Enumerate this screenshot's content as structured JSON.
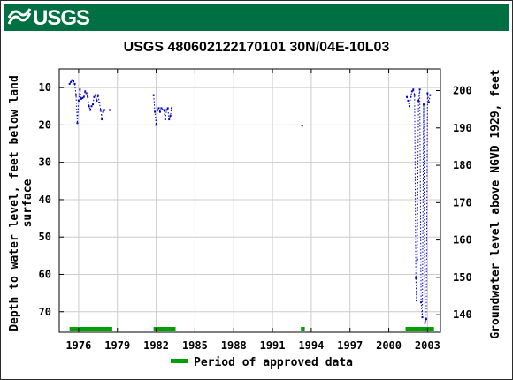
{
  "header": {
    "logo_text": "USGS"
  },
  "chart_data": {
    "type": "scatter",
    "title": "USGS 480602122170101 30N/04E-10L03",
    "ylabel_left_line1": "Depth to water level, feet below land",
    "ylabel_left_line2": "surface",
    "ylabel_right": "Groundwater level above NGVD 1929, feet",
    "x_range": [
      1974.5,
      2004.0
    ],
    "y_range_depth": [
      75.5,
      5.0
    ],
    "y_range_elevation": [
      135.3,
      205.8
    ],
    "x_ticks": [
      1976,
      1979,
      1982,
      1985,
      1988,
      1991,
      1994,
      1997,
      2000,
      2003
    ],
    "x_tick_labels": [
      "1976",
      "1979",
      "1982",
      "1985",
      "1988",
      "1991",
      "1994",
      "1997",
      "2000",
      "2003"
    ],
    "y_ticks_depth": [
      10,
      20,
      30,
      40,
      50,
      60,
      70
    ],
    "y_tick_labels_depth": [
      "10",
      "20",
      "30",
      "40",
      "50",
      "60",
      "70"
    ],
    "y_ticks_elevation": [
      140,
      150,
      160,
      170,
      180,
      190,
      200
    ],
    "y_tick_labels_elevation": [
      "140",
      "150",
      "160",
      "170",
      "180",
      "190",
      "200"
    ],
    "grid": true,
    "series": [
      {
        "style": "dotted-line-with-points",
        "color": "#0000cc",
        "segments": [
          [
            [
              1975.3,
              9.0
            ],
            [
              1975.4,
              8.5
            ],
            [
              1975.5,
              8.0
            ],
            [
              1975.6,
              8.3
            ],
            [
              1975.7,
              9.0
            ],
            [
              1975.8,
              12.0
            ],
            [
              1975.9,
              19.5
            ],
            [
              1976.0,
              13.5
            ],
            [
              1976.1,
              10.5
            ],
            [
              1976.2,
              13.0
            ],
            [
              1976.3,
              12.8
            ],
            [
              1976.4,
              12.5
            ],
            [
              1976.5,
              11.0
            ],
            [
              1976.6,
              11.5
            ],
            [
              1976.7,
              12.5
            ],
            [
              1976.8,
              15.0
            ],
            [
              1976.9,
              16.0
            ],
            [
              1977.0,
              15.0
            ],
            [
              1977.1,
              14.5
            ],
            [
              1977.2,
              12.5
            ],
            [
              1977.3,
              12.0
            ],
            [
              1977.4,
              13.5
            ],
            [
              1977.5,
              12.0
            ],
            [
              1977.6,
              14.0
            ],
            [
              1977.7,
              16.0
            ],
            [
              1977.8,
              18.5
            ],
            [
              1977.9,
              16.5
            ],
            [
              1978.0,
              16.0
            ],
            [
              1978.4,
              16.0
            ]
          ],
          [
            [
              1981.8,
              12.0
            ],
            [
              1981.9,
              16.5
            ],
            [
              1982.0,
              20.0
            ],
            [
              1982.1,
              16.0
            ],
            [
              1982.2,
              15.5
            ],
            [
              1982.3,
              16.5
            ],
            [
              1982.4,
              15.5
            ],
            [
              1982.6,
              16.0
            ],
            [
              1982.7,
              18.5
            ],
            [
              1982.8,
              16.0
            ],
            [
              1982.9,
              15.5
            ],
            [
              1983.0,
              18.5
            ],
            [
              1983.1,
              17.5
            ],
            [
              1983.2,
              15.5
            ]
          ],
          [
            [
              2001.4,
              12.5
            ],
            [
              2001.5,
              13.5
            ],
            [
              2001.6,
              15.0
            ],
            [
              2001.7,
              12.5
            ],
            [
              2001.8,
              11.0
            ],
            [
              2001.9,
              10.5
            ],
            [
              2002.0,
              12.0
            ],
            [
              2002.1,
              61.0
            ],
            [
              2002.15,
              67.0
            ],
            [
              2002.2,
              56.0
            ],
            [
              2002.3,
              13.5
            ],
            [
              2002.4,
              10.5
            ],
            [
              2002.5,
              67.5
            ],
            [
              2002.6,
              71.5
            ],
            [
              2002.7,
              14.5
            ],
            [
              2002.8,
              73.0
            ],
            [
              2002.9,
              72.0
            ],
            [
              2003.0,
              11.5
            ],
            [
              2003.1,
              14.0
            ],
            [
              2003.2,
              12.0
            ]
          ]
        ],
        "isolated_points": [
          [
            1993.3,
            20.2
          ]
        ]
      }
    ],
    "approved_periods": [
      [
        1975.3,
        1978.6
      ],
      [
        1981.8,
        1983.5
      ],
      [
        1993.2,
        1993.5
      ],
      [
        2001.3,
        2003.5
      ]
    ],
    "approved_color": "#00a000",
    "legend": {
      "label": "Period of approved data",
      "placement": "bottom-center"
    }
  }
}
